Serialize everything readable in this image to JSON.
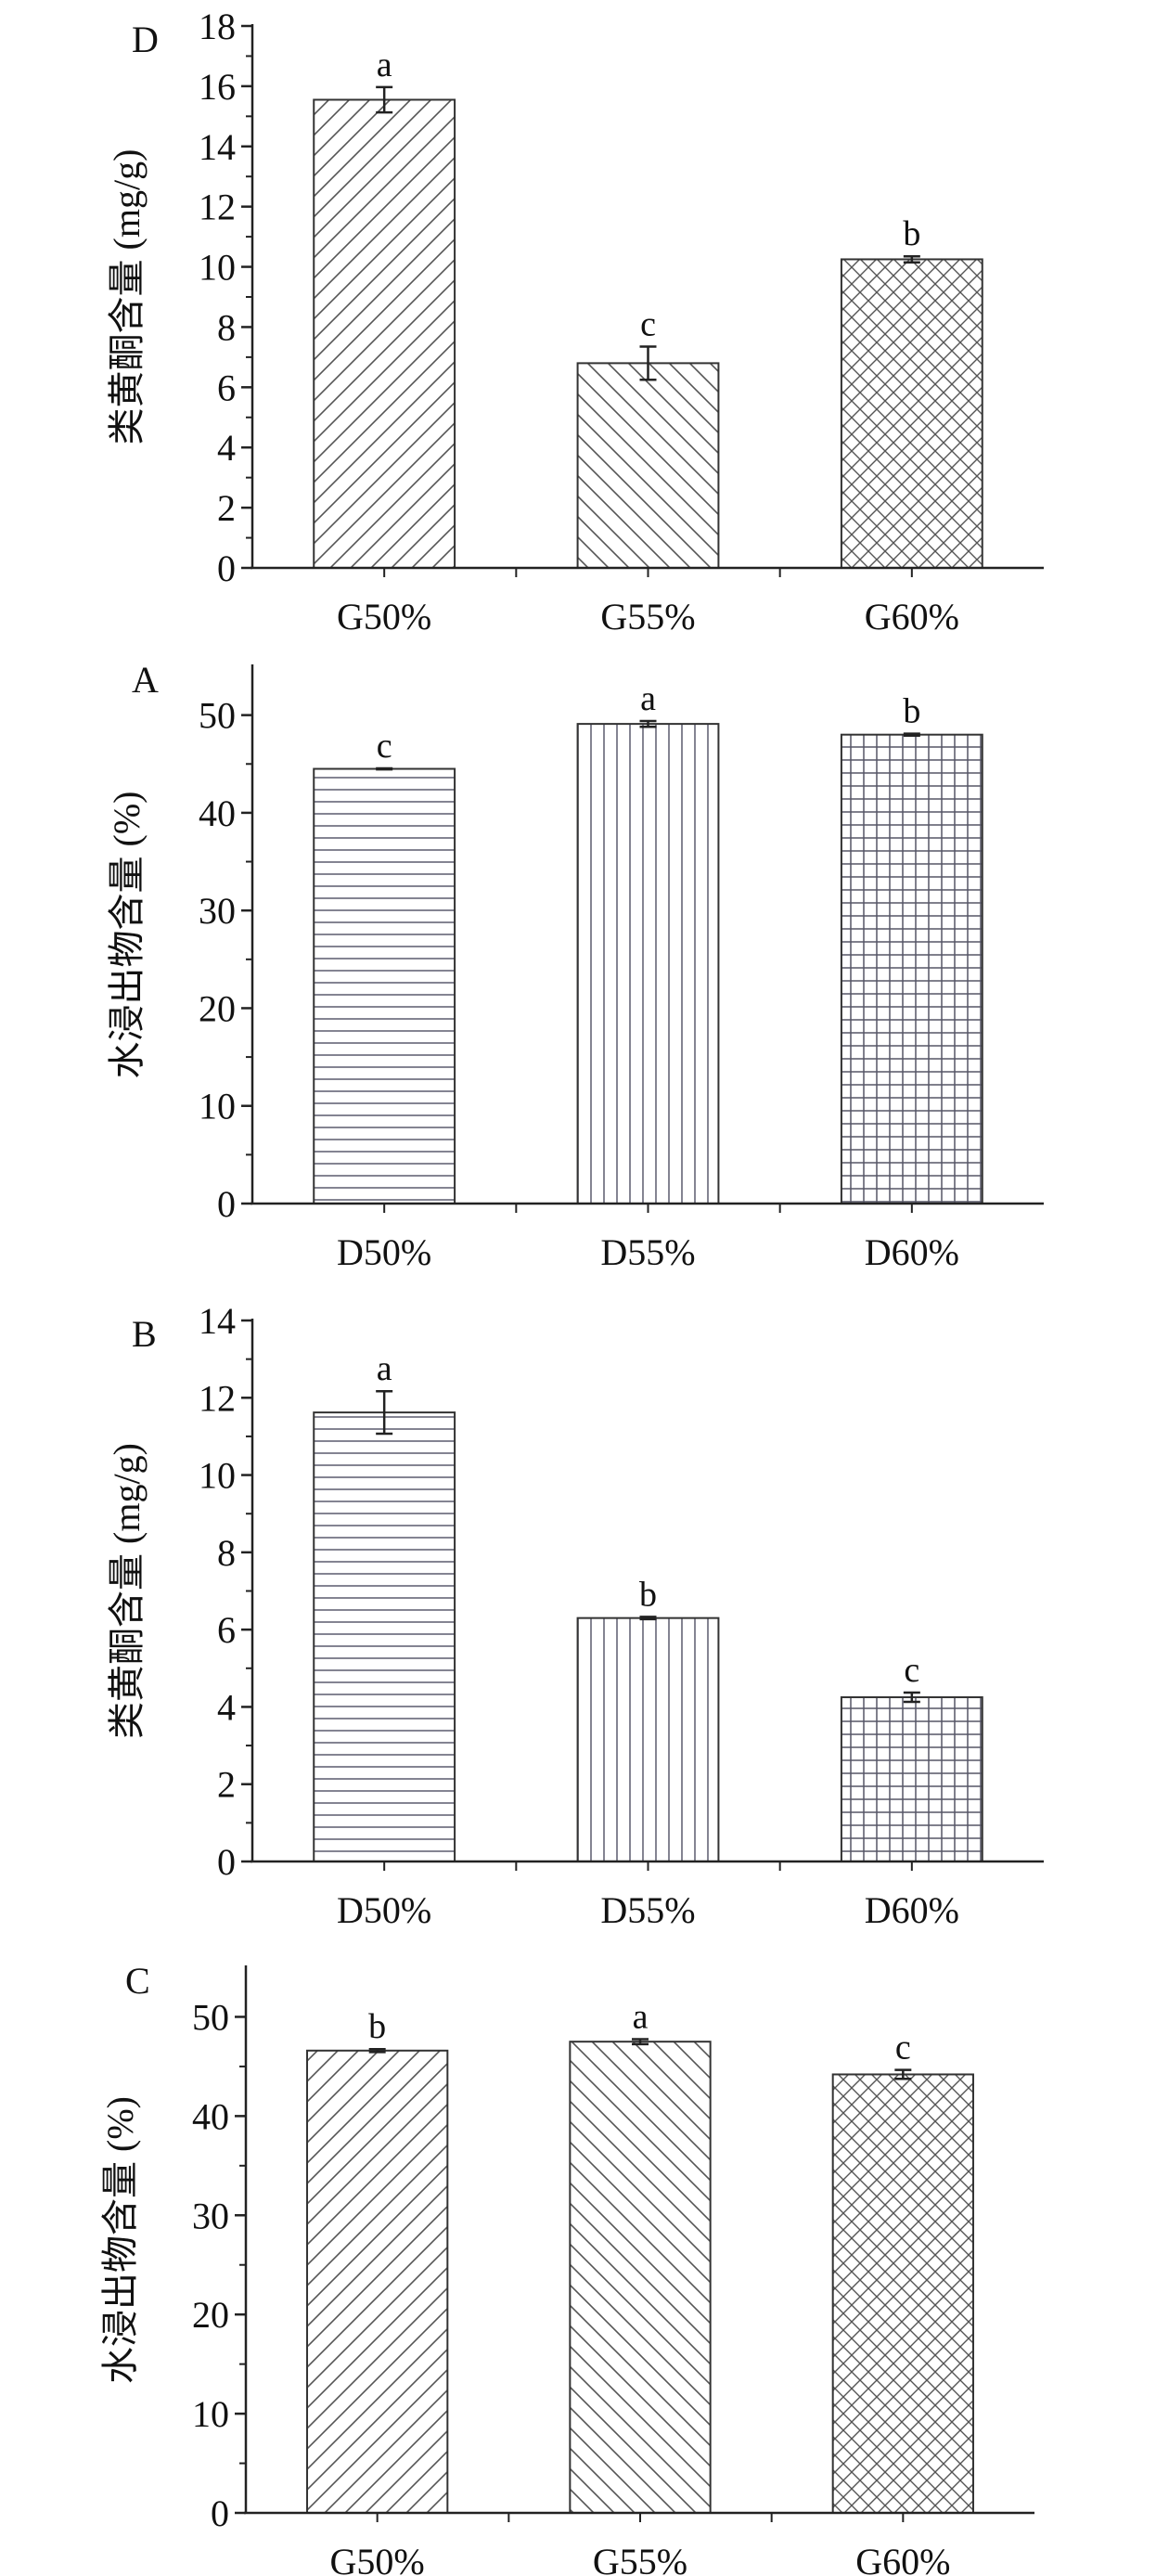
{
  "chart_data": [
    {
      "type": "bar",
      "panel": "D",
      "ylabel": "类黄酮含量 (mg/g)",
      "ylim": [
        0,
        18
      ],
      "yticks": [
        0,
        2,
        4,
        6,
        8,
        10,
        12,
        14,
        16,
        18
      ],
      "categories": [
        "G50%",
        "G55%",
        "G60%"
      ],
      "values": [
        15.55,
        6.8,
        10.25
      ],
      "errors": [
        0.42,
        0.55,
        0.1
      ],
      "letters": [
        "a",
        "c",
        "b"
      ],
      "patterns": [
        "diag-right",
        "diag-left",
        "crosshatch"
      ]
    },
    {
      "type": "bar",
      "panel": "A",
      "ylabel": "水浸出物含量 (%)",
      "ylim": [
        0,
        55
      ],
      "yticks": [
        0,
        10,
        20,
        30,
        40,
        50
      ],
      "categories": [
        "D50%",
        "D55%",
        "D60%"
      ],
      "values": [
        44.5,
        49.1,
        48.0
      ],
      "errors": [
        0.05,
        0.3,
        0.1
      ],
      "letters": [
        "c",
        "a",
        "b"
      ],
      "patterns": [
        "horizontal",
        "vertical",
        "grid"
      ]
    },
    {
      "type": "bar",
      "panel": "B",
      "ylabel": "类黄酮含量 (mg/g)",
      "ylim": [
        0,
        14
      ],
      "yticks": [
        0,
        2,
        4,
        6,
        8,
        10,
        12,
        14
      ],
      "categories": [
        "D50%",
        "D55%",
        "D60%"
      ],
      "values": [
        11.62,
        6.3,
        4.25
      ],
      "errors": [
        0.55,
        0.03,
        0.12
      ],
      "letters": [
        "a",
        "b",
        "c"
      ],
      "patterns": [
        "horizontal",
        "vertical",
        "grid"
      ]
    },
    {
      "type": "bar",
      "panel": "C",
      "ylabel": "水浸出物含量 (%)",
      "ylim": [
        0,
        55
      ],
      "yticks": [
        0,
        10,
        20,
        30,
        40,
        50
      ],
      "categories": [
        "G50%",
        "G55%",
        "G60%"
      ],
      "values": [
        46.6,
        47.5,
        44.2
      ],
      "errors": [
        0.15,
        0.25,
        0.45
      ],
      "letters": [
        "b",
        "a",
        "c"
      ],
      "patterns": [
        "diag-right",
        "diag-left",
        "crosshatch"
      ]
    }
  ]
}
